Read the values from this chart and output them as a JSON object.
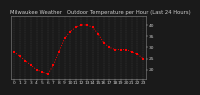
{
  "title": "Milwaukee Weather   Outdoor Temperature per Hour (Last 24 Hours)",
  "hours": [
    0,
    1,
    2,
    3,
    4,
    5,
    6,
    7,
    8,
    9,
    10,
    11,
    12,
    13,
    14,
    15,
    16,
    17,
    18,
    19,
    20,
    21,
    22,
    23
  ],
  "temps": [
    28,
    26,
    24,
    22,
    20,
    19,
    18,
    22,
    28,
    34,
    37,
    39,
    40,
    40,
    39,
    36,
    32,
    30,
    29,
    29,
    29,
    28,
    27,
    25
  ],
  "line_color": "#ff0000",
  "bg_color": "#1a1a1a",
  "plot_bg_color": "#1a1a1a",
  "text_color": "#cccccc",
  "grid_color": "#555555",
  "spine_color": "#888888",
  "ylim": [
    16,
    44
  ],
  "ytick_vals": [
    20,
    25,
    30,
    35,
    40
  ],
  "ytick_labels": [
    "20",
    "25",
    "30",
    "35",
    "40"
  ],
  "title_fontsize": 3.8,
  "tick_fontsize": 3.2,
  "line_width": 0.7,
  "marker_size": 1.8
}
